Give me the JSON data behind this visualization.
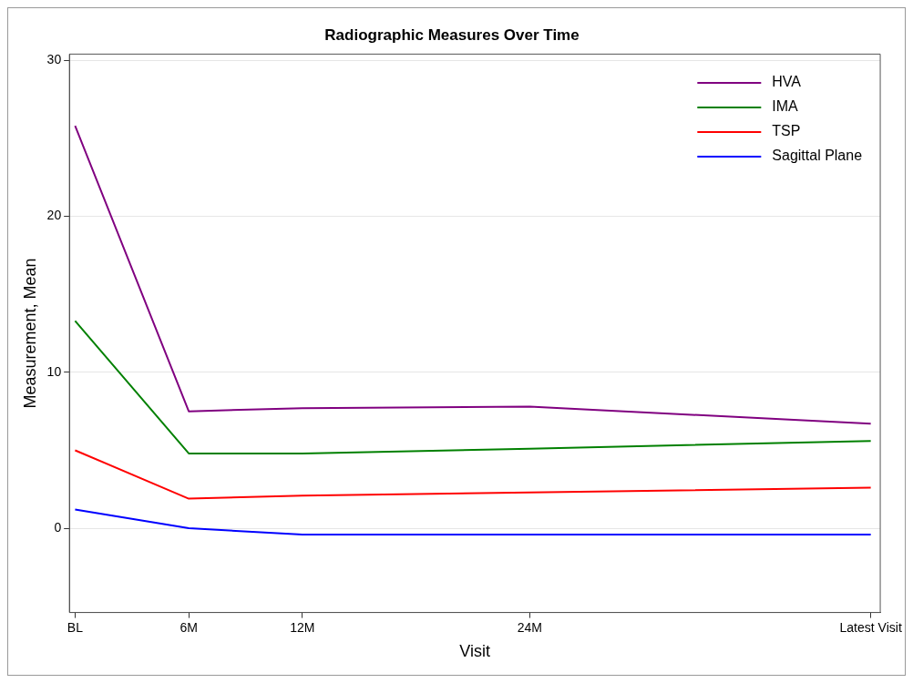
{
  "chart_data": {
    "type": "line",
    "title": "Radiographic Measures Over Time",
    "xlabel": "Visit",
    "ylabel": "Measurement, Mean",
    "x": [
      0,
      6,
      12,
      24,
      42
    ],
    "series": [
      {
        "name": "HVA",
        "color": "#800080",
        "values": [
          25.8,
          7.5,
          7.7,
          7.8,
          6.7
        ]
      },
      {
        "name": "IMA",
        "color": "#008000",
        "values": [
          13.3,
          4.8,
          4.8,
          5.1,
          5.6
        ]
      },
      {
        "name": "TSP",
        "color": "#ff0000",
        "values": [
          5.0,
          1.9,
          2.1,
          2.3,
          2.6
        ]
      },
      {
        "name": "Sagittal Plane",
        "color": "#0000ff",
        "values": [
          1.2,
          0,
          -0.4,
          -0.4,
          -0.4
        ]
      }
    ],
    "xlim": [
      -0.3,
      42.5
    ],
    "xticks": [
      {
        "value": 0,
        "label": "BL"
      },
      {
        "value": 6,
        "label": "6M"
      },
      {
        "value": 12,
        "label": "12M"
      },
      {
        "value": 24,
        "label": "24M"
      },
      {
        "value": 42,
        "label": "Latest Visit"
      }
    ],
    "ylim": [
      -5.4,
      30.4
    ],
    "yticks": [
      0,
      10,
      20,
      30
    ],
    "grid": "y",
    "legend": "top right",
    "marker": "none",
    "line_style": "solid"
  }
}
